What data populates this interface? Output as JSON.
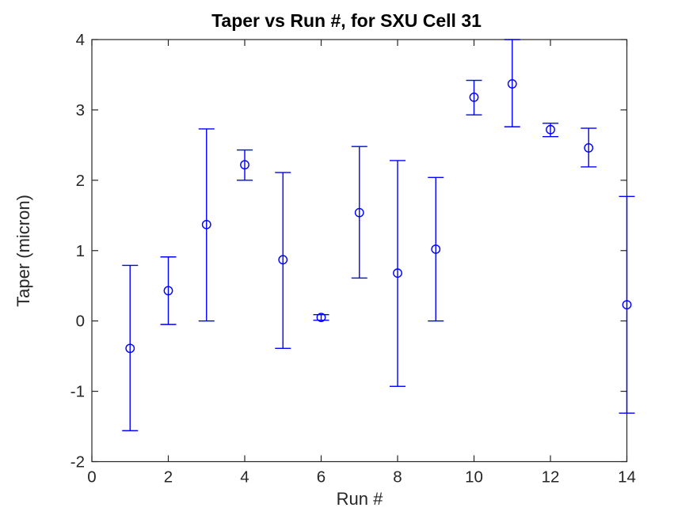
{
  "chart_data": {
    "type": "scatter",
    "subtype": "errorbar",
    "title": "Taper vs Run #, for SXU Cell 31",
    "xlabel": "Run #",
    "ylabel": "Taper (micron)",
    "xlim": [
      0,
      14
    ],
    "ylim": [
      -2,
      4
    ],
    "xticks": [
      0,
      2,
      4,
      6,
      8,
      10,
      12,
      14
    ],
    "yticks": [
      -2,
      -1,
      0,
      1,
      2,
      3,
      4
    ],
    "grid": false,
    "legend": null,
    "marker": "open-circle",
    "color": "#0000FF",
    "axis_color": "#262626",
    "series": [
      {
        "name": "Taper",
        "x": [
          1,
          2,
          3,
          4,
          5,
          6,
          7,
          8,
          9,
          10,
          11,
          12,
          13,
          14
        ],
        "y": [
          -0.39,
          0.43,
          1.37,
          2.22,
          0.87,
          0.05,
          1.54,
          0.68,
          1.02,
          3.18,
          3.37,
          2.72,
          2.46,
          0.23
        ],
        "err_minus": [
          1.17,
          0.48,
          1.37,
          0.22,
          1.26,
          0.04,
          0.93,
          1.61,
          1.02,
          0.25,
          0.61,
          0.1,
          0.27,
          1.54
        ],
        "err_plus": [
          1.18,
          0.48,
          1.36,
          0.21,
          1.24,
          0.04,
          0.94,
          1.6,
          1.02,
          0.24,
          0.63,
          0.09,
          0.28,
          1.54
        ]
      }
    ]
  }
}
